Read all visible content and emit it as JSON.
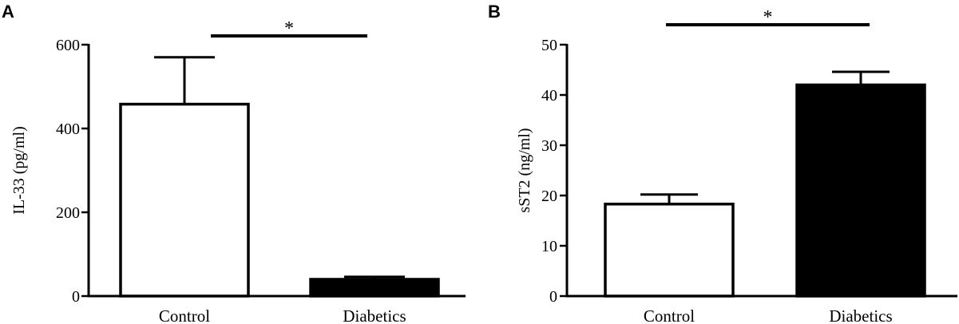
{
  "chart_data": [
    {
      "panel": "A",
      "type": "bar",
      "categories": [
        "Control",
        "Diabetics"
      ],
      "values": [
        458,
        40
      ],
      "errors": [
        112,
        6
      ],
      "fills": [
        "#ffffff",
        "#000000"
      ],
      "ylabel": "IL-33 (pg/ml)",
      "ylim": [
        0,
        600
      ],
      "yticks": [
        0,
        200,
        400,
        600
      ],
      "significance": "*",
      "grid": false,
      "legend": "none"
    },
    {
      "panel": "B",
      "type": "bar",
      "categories": [
        "Control",
        "Diabetics"
      ],
      "values": [
        18.3,
        42
      ],
      "errors": [
        1.9,
        2.6
      ],
      "fills": [
        "#ffffff",
        "#000000"
      ],
      "ylabel": "sST2 (ng/ml)",
      "ylim": [
        0,
        50
      ],
      "yticks": [
        0,
        10,
        20,
        30,
        40,
        50
      ],
      "significance": "*",
      "grid": false,
      "legend": "none"
    }
  ]
}
